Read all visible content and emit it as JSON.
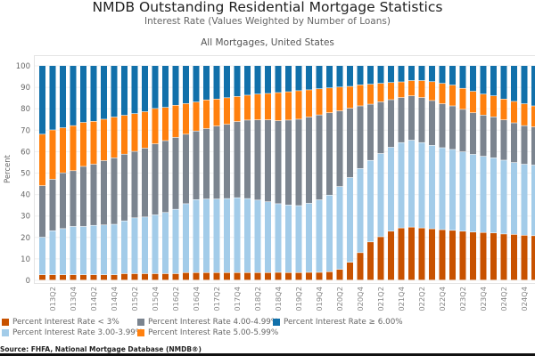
{
  "chart_data": {
    "type": "bar",
    "stacked": true,
    "title": "NMDB Outstanding Residential Mortgage Statistics",
    "subtitle": "Interest Rate (Values Weighted by Number of Loans)",
    "filter_label": "All Mortgages,  United States",
    "ylabel": "Percent",
    "xlabel": "",
    "ylim": [
      0,
      100
    ],
    "yticks": [
      0,
      10,
      20,
      30,
      40,
      50,
      60,
      70,
      80,
      90,
      100
    ],
    "grid": true,
    "legend_position": "bottom",
    "categories": [
      "2013Q1",
      "2013Q2",
      "2013Q3",
      "2013Q4",
      "2014Q1",
      "2014Q2",
      "2014Q3",
      "2014Q4",
      "2015Q1",
      "2015Q2",
      "2015Q3",
      "2015Q4",
      "2016Q1",
      "2016Q2",
      "2016Q3",
      "2016Q4",
      "2017Q1",
      "2017Q2",
      "2017Q3",
      "2017Q4",
      "2018Q1",
      "2018Q2",
      "2018Q3",
      "2018Q4",
      "2019Q1",
      "2019Q2",
      "2019Q3",
      "2019Q4",
      "2020Q1",
      "2020Q2",
      "2020Q3",
      "2020Q4",
      "2021Q1",
      "2021Q2",
      "2021Q3",
      "2021Q4",
      "2022Q1",
      "2022Q2",
      "2022Q3",
      "2022Q4",
      "2023Q1",
      "2023Q2",
      "2023Q3",
      "2023Q4",
      "2024Q1",
      "2024Q2",
      "2024Q3",
      "2024Q4",
      "2025Q1"
    ],
    "series": [
      {
        "name": "Percent Interest Rate < 3%",
        "color": "#c85200",
        "values": [
          2.5,
          2.5,
          2.5,
          2.5,
          2.5,
          2.5,
          2.5,
          2.5,
          3,
          3,
          3,
          3,
          3,
          3,
          3.5,
          3.5,
          3.5,
          3.5,
          3.5,
          3.5,
          3.5,
          3.5,
          3.5,
          3.6,
          3.5,
          3.5,
          3.6,
          3.6,
          3.9,
          5,
          8.3,
          12.8,
          17.8,
          20.2,
          22.8,
          24.3,
          24.7,
          24.3,
          23.9,
          23.5,
          23.2,
          22.8,
          22.4,
          22.2,
          22,
          21.5,
          21.3,
          20.9,
          20.7
        ]
      },
      {
        "name": "Percent Interest Rate 3.00-3.99%",
        "color": "#a3cce9",
        "values": [
          17.5,
          20.5,
          21.5,
          22.5,
          22.5,
          23,
          23.2,
          23.5,
          24.6,
          26,
          26.4,
          27.4,
          28.5,
          30,
          32.1,
          34,
          34.3,
          34.3,
          34.5,
          34.9,
          34.5,
          33.8,
          33,
          32,
          31.5,
          31.2,
          32.2,
          33.8,
          35.7,
          38.6,
          39.5,
          39.2,
          38,
          38.8,
          39.1,
          39.8,
          40.5,
          39.8,
          38.9,
          38.2,
          37.7,
          37,
          36.2,
          35.5,
          35,
          34.4,
          33.5,
          33.1,
          32.9
        ]
      },
      {
        "name": "Percent Interest Rate 4.00-4.99%",
        "color": "#7b848f",
        "values": [
          24,
          24,
          26,
          26,
          28,
          28.5,
          30,
          31,
          31.1,
          31,
          32.1,
          33.1,
          33.5,
          33.5,
          32.4,
          32,
          32.8,
          34,
          34.6,
          35.5,
          36.6,
          37.4,
          38.2,
          38.7,
          39.6,
          40.3,
          40.2,
          39.6,
          38.4,
          35.3,
          32.3,
          29.2,
          26.2,
          24.1,
          22.2,
          21,
          20.7,
          21,
          20.9,
          20.5,
          20.3,
          19.8,
          19.4,
          19.2,
          19.1,
          18.8,
          18.5,
          18,
          17.8
        ]
      },
      {
        "name": "Percent Interest Rate 5.00-5.99%",
        "color": "#ff800e",
        "values": [
          24,
          23,
          21,
          21,
          20.5,
          20,
          19.3,
          19,
          18.1,
          17.6,
          17,
          16.5,
          15.5,
          15,
          14.3,
          13.5,
          13.4,
          12.6,
          12.4,
          11.7,
          11.6,
          12,
          12.3,
          13.1,
          13.2,
          13.3,
          12.7,
          12.2,
          11.6,
          11.1,
          10.2,
          9.8,
          9.3,
          8.6,
          8,
          7.3,
          7.1,
          7.9,
          8.8,
          9.5,
          9.7,
          9.8,
          10,
          9.8,
          9.8,
          9.7,
          10,
          10.2,
          9.8
        ]
      },
      {
        "name": "Percent Interest Rate ≥ 6.00%",
        "color": "#1170aa",
        "values": [
          32,
          30,
          29,
          28,
          26.5,
          26,
          25,
          24,
          23.2,
          22.4,
          21.5,
          20,
          19.5,
          18.5,
          17.7,
          17,
          16,
          15.6,
          15,
          14.4,
          13.8,
          13.3,
          13,
          12.6,
          12.2,
          11.7,
          11.3,
          10.8,
          10.4,
          10,
          9.7,
          9,
          8.7,
          8.3,
          7.9,
          7.6,
          7,
          7,
          7.5,
          8.3,
          9.1,
          10.6,
          12,
          13.3,
          14.1,
          15.6,
          16.7,
          17.8,
          18.8
        ]
      }
    ],
    "source": "Source:  FHFA, National Mortgage Database (NMDB®)"
  }
}
